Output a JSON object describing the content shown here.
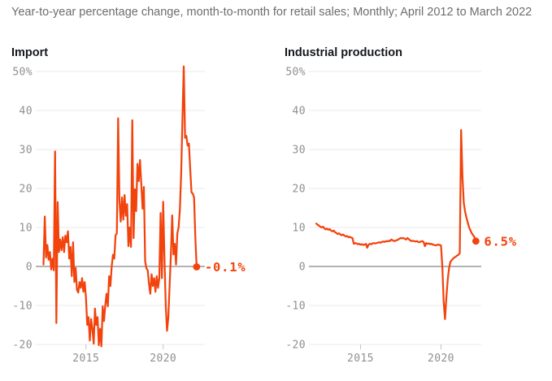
{
  "title": "Year-to-year percentage change, month-to-month for retail sales; Monthly; April 2012 to March 2022",
  "colors": {
    "line": "#f2430d",
    "grid": "#e9e9e9",
    "zero_line": "#a8a8a8",
    "axis_text": "#8f8f8f",
    "tick_mark": "#c2c2c2",
    "header_text": "#6d6d6d",
    "panel_title_text": "#15181c"
  },
  "chart_data": [
    {
      "type": "line",
      "title": "Import",
      "unit": "percent, year-to-year change",
      "x_monthly_start": "2012-04",
      "x_monthly_end": "2022-03",
      "x_axis": {
        "tick_labels": [
          "2015",
          "2020"
        ],
        "start": "April 2012",
        "end": "March 2022"
      },
      "y_axis": {
        "ticks": [
          50,
          40,
          30,
          20,
          10,
          0,
          -10,
          -20
        ],
        "top_label": "50%",
        "ylim": [
          -22,
          52
        ],
        "grid": true
      },
      "end_label": "-0.1%",
      "end_value": -0.1,
      "values": [
        0.5,
        12.8,
        2.3,
        5.5,
        1.7,
        3.7,
        -0.8,
        2.0,
        -1.0,
        29.5,
        -14.5,
        16.5,
        3.7,
        6.9,
        4.2,
        7.5,
        3.7,
        7.9,
        6.2,
        9.0,
        2.0,
        5.0,
        -2.5,
        6.2,
        -4.0,
        -0.4,
        -6.0,
        -6.7,
        -4.0,
        -5.5,
        -3.0,
        -6.5,
        -4.0,
        -8.0,
        -15.0,
        -13.0,
        -19.0,
        -13.5,
        -16.0,
        -19.8,
        -10.8,
        -15.0,
        -13.0,
        -20.2,
        -16.0,
        -20.5,
        -10.2,
        -14.0,
        -10.0,
        -7.0,
        -10.2,
        -2.5,
        -5.0,
        0.0,
        3.0,
        2.0,
        8.0,
        8.5,
        38.0,
        17.0,
        11.5,
        17.7,
        12.0,
        18.3,
        13.0,
        16.0,
        5.2,
        10.0,
        5.0,
        37.5,
        7.3,
        19.8,
        14.2,
        26.3,
        21.9,
        27.3,
        21.0,
        14.8,
        20.4,
        1.3,
        -0.5,
        -1.0,
        -4.5,
        -7.0,
        -2.0,
        -5.0,
        -3.0,
        -6.5,
        -2.5,
        -5.5,
        -3.0,
        13.7,
        -3.0,
        16.6,
        2.0,
        -10.0,
        -16.5,
        -13.0,
        -5.0,
        3.0,
        13.1,
        3.1,
        5.8,
        0.5,
        8.5,
        10.0,
        14.8,
        24.0,
        38.0,
        51.3,
        33.0,
        33.5,
        31.0,
        31.5,
        25.0,
        19.0,
        18.7,
        17.7,
        7.3,
        -0.1
      ]
    },
    {
      "type": "line",
      "title": "Industrial production",
      "unit": "percent, year-to-year change",
      "x_monthly_start": "2012-04",
      "x_monthly_end": "2022-03",
      "x_axis": {
        "tick_labels": [
          "2015",
          "2020"
        ],
        "start": "April 2012",
        "end": "March 2022"
      },
      "y_axis": {
        "ticks": [
          50,
          40,
          30,
          20,
          10,
          0,
          -10,
          -20
        ],
        "top_label": "50%",
        "ylim": [
          -22,
          52
        ],
        "grid": true
      },
      "end_label": "6.5%",
      "end_value": 6.5,
      "values": [
        11.0,
        10.7,
        10.5,
        10.2,
        10.0,
        10.2,
        9.8,
        9.5,
        9.7,
        9.4,
        9.6,
        9.2,
        9.0,
        9.2,
        8.8,
        8.6,
        8.3,
        8.5,
        8.2,
        8.0,
        8.2,
        7.9,
        7.7,
        7.8,
        7.5,
        7.6,
        7.4,
        7.3,
        5.8,
        6.0,
        5.9,
        5.7,
        5.8,
        5.6,
        5.7,
        5.5,
        5.6,
        5.8,
        4.8,
        5.6,
        5.8,
        5.7,
        5.9,
        6.0,
        5.9,
        6.0,
        6.1,
        6.2,
        6.1,
        6.3,
        6.4,
        6.3,
        6.5,
        6.4,
        6.6,
        6.5,
        6.9,
        6.7,
        6.5,
        6.6,
        6.7,
        6.9,
        7.1,
        7.3,
        7.2,
        7.3,
        7.1,
        6.9,
        7.3,
        7.0,
        6.7,
        6.5,
        6.6,
        6.5,
        6.4,
        6.5,
        6.3,
        6.2,
        6.4,
        6.5,
        6.3,
        5.2,
        6.0,
        5.8,
        5.9,
        5.7,
        5.8,
        5.6,
        5.5,
        5.4,
        5.5,
        5.6,
        5.5,
        5.4,
        0.0,
        -9.0,
        -13.5,
        -8.0,
        -3.5,
        -0.5,
        1.2,
        1.6,
        2.0,
        2.3,
        2.5,
        2.8,
        3.0,
        3.4,
        35.0,
        23.0,
        16.3,
        14.0,
        12.5,
        11.2,
        10.0,
        9.2,
        8.5,
        8.0,
        7.5,
        6.5
      ]
    }
  ]
}
